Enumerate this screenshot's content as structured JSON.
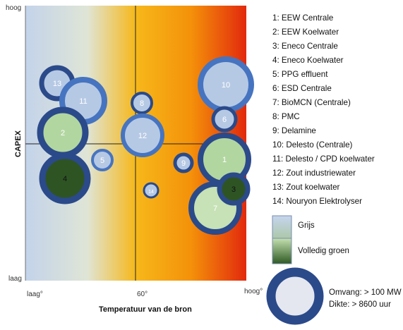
{
  "axes": {
    "y_title": "CAPEX",
    "y_high": "hoog",
    "y_low": "laag",
    "x_title": "Temperatuur van de bron",
    "x_low": "laag°",
    "x_mid": "60°",
    "x_high": "hoog°"
  },
  "bubbles": [
    {
      "id": "13",
      "fill": "#b6c9e4",
      "ring": "#2b4a8a"
    },
    {
      "id": "11",
      "fill": "#b6c9e4",
      "ring": "#4674c0"
    },
    {
      "id": "2",
      "fill": "#b2d6a0",
      "ring": "#2b4a8a"
    },
    {
      "id": "4",
      "fill": "#2e5424",
      "ring": "#2b4a8a"
    },
    {
      "id": "5",
      "fill": "#b6c9e4",
      "ring": "#4674c0"
    },
    {
      "id": "8",
      "fill": "#b6c9e4",
      "ring": "#2b4a8a"
    },
    {
      "id": "12",
      "fill": "#b6c9e4",
      "ring": "#4674c0"
    },
    {
      "id": "14",
      "fill": "#b6c9e4",
      "ring": "#2b4a8a"
    },
    {
      "id": "9",
      "fill": "#b6c9e4",
      "ring": "#2b4a8a"
    },
    {
      "id": "10",
      "fill": "#b6c9e4",
      "ring": "#4674c0"
    },
    {
      "id": "6",
      "fill": "#b6c9e4",
      "ring": "#2b4a8a"
    },
    {
      "id": "1",
      "fill": "#b2d6a0",
      "ring": "#2b4a8a"
    },
    {
      "id": "7",
      "fill": "#c6e2b6",
      "ring": "#2b4a8a"
    },
    {
      "id": "3",
      "fill": "#2e5424",
      "ring": "#2b4a8a"
    }
  ],
  "legend_items": [
    "1: EEW Centrale",
    "2: EEW Koelwater",
    "3: Eneco Centrale",
    "4: Eneco Koelwater",
    "5: PPG effluent",
    "6: ESD Centrale",
    "7: BioMCN (Centrale)",
    "8: PMC",
    "9: Delamine",
    "10: Delesto (Centrale)",
    "11: Delesto / CPD koelwater",
    "12: Zout industriewater",
    "13: Zout koelwater",
    "14: Nouryon Elektrolyser"
  ],
  "color_legend": {
    "gray_label": "Grijs",
    "green_label": "Volledig groen"
  },
  "size_legend": {
    "line1": "Omvang: > 100 MW",
    "line2": "Dikte: > 8600 uur"
  },
  "colors": {
    "ring_dark": "#2b4a8a",
    "ring_light": "#4674c0",
    "bg_cool": "#b9cbe6",
    "bg_warm": "#f5a800",
    "bg_hot": "#e0300e"
  }
}
